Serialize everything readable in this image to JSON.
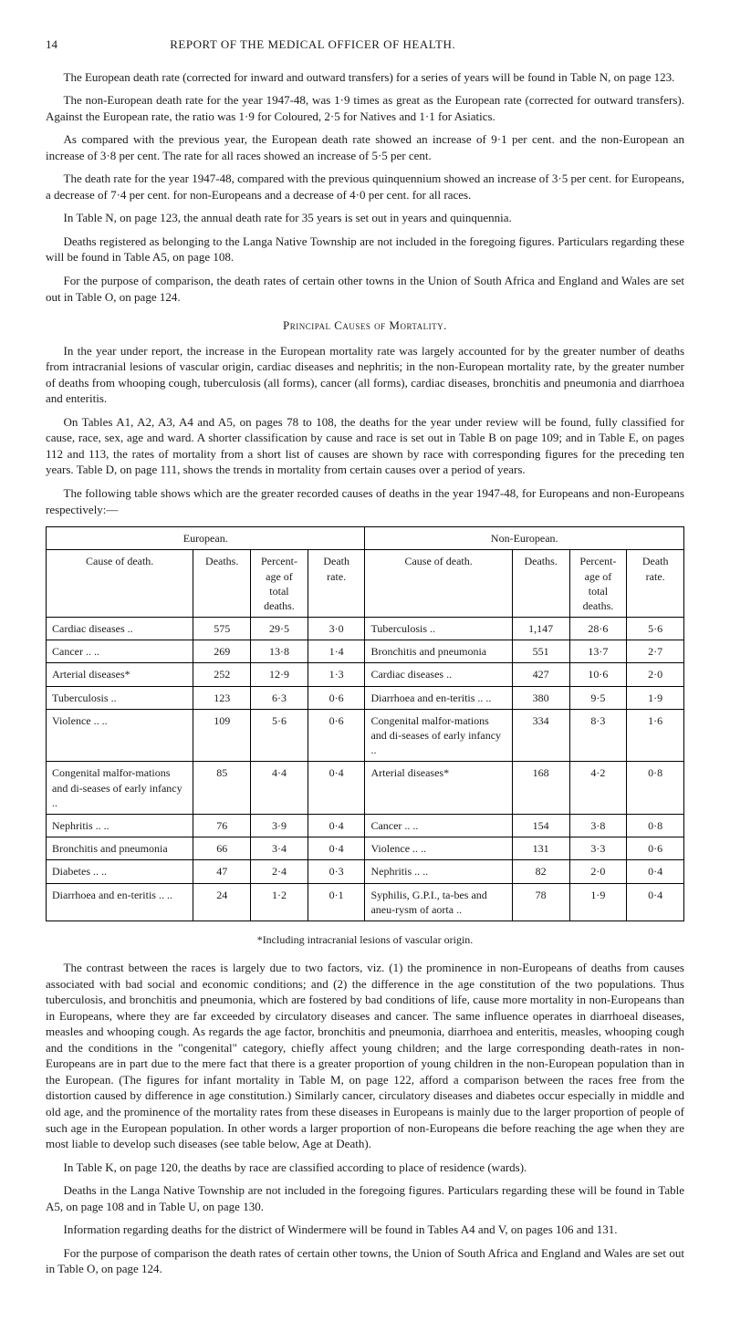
{
  "pageNumber": "14",
  "headerTitle": "REPORT OF THE MEDICAL OFFICER OF HEALTH.",
  "paragraphs": {
    "p1": "The European death rate (corrected for inward and outward transfers) for a series of years will be found in Table N, on page 123.",
    "p2": "The non-European death rate for the year 1947-48, was 1·9 times as great as the European rate (corrected for outward transfers). Against the European rate, the ratio was 1·9 for Coloured, 2·5 for Natives and 1·1 for Asiatics.",
    "p3": "As compared with the previous year, the European death rate showed an increase of 9·1 per cent. and the non-European an increase of 3·8 per cent. The rate for all races showed an increase of 5·5 per cent.",
    "p4": "The death rate for the year 1947-48, compared with the previous quinquennium showed an increase of 3·5 per cent. for Europeans, a decrease of 7·4 per cent. for non-Europeans and a decrease of 4·0 per cent. for all races.",
    "p5": "In Table N, on page 123, the annual death rate for 35 years is set out in years and quinquennia.",
    "p6": "Deaths registered as belonging to the Langa Native Township are not included in the foregoing figures. Particulars regarding these will be found in Table A5, on page 108.",
    "p7": "For the purpose of comparison, the death rates of certain other towns in the Union of South Africa and England and Wales are set out in Table O, on page 124.",
    "sectionTitle": "Principal Causes of Mortality.",
    "p8": "In the year under report, the increase in the European mortality rate was largely accounted for by the greater number of deaths from intracranial lesions of vascular origin, cardiac diseases and nephritis; in the non-European mortality rate, by the greater number of deaths from whooping cough, tuberculosis (all forms), cancer (all forms), cardiac diseases, bronchitis and pneumonia and diarrhoea and enteritis.",
    "p9": "On Tables A1, A2, A3, A4 and A5, on pages 78 to 108, the deaths for the year under review will be found, fully classified for cause, race, sex, age and ward. A shorter classification by cause and race is set out in Table B on page 109; and in Table E, on pages 112 and 113, the rates of mortality from a short list of causes are shown by race with corresponding figures for the preceding ten years. Table D, on page 111, shows the trends in mortality from certain causes over a period of years.",
    "p10": "The following table shows which are the greater recorded causes of deaths in the year 1947-48, for Europeans and non-Europeans respectively:—",
    "footnote": "*Including intracranial lesions of vascular origin.",
    "p11": "The contrast between the races is largely due to two factors, viz. (1) the prominence in non-Europeans of deaths from causes associated with bad social and economic conditions; and (2) the difference in the age constitution of the two populations. Thus tuberculosis, and bronchitis and pneumonia, which are fostered by bad conditions of life, cause more mortality in non-Europeans than in Europeans, where they are far exceeded by circulatory diseases and cancer. The same influence operates in diarrhoeal diseases, measles and whooping cough. As regards the age factor, bronchitis and pneumonia, diarrhoea and enteritis, measles, whooping cough and the conditions in the \"congenital\" category, chiefly affect young children; and the large corresponding death-rates in non-Europeans are in part due to the mere fact that there is a greater proportion of young children in the non-European population than in the European. (The figures for infant mortality in Table M, on page 122, afford a comparison between the races free from the distortion caused by difference in age constitution.) Similarly cancer, circulatory diseases and diabetes occur especially in middle and old age, and the prominence of the mortality rates from these diseases in Europeans is mainly due to the larger proportion of people of such age in the European population. In other words a larger proportion of non-Europeans die before reaching the age when they are most liable to develop such diseases (see table below, Age at Death).",
    "p12": "In Table K, on page 120, the deaths by race are classified according to place of residence (wards).",
    "p13": "Deaths in the Langa Native Township are not included in the foregoing figures. Particulars regarding these will be found in Table A5, on page 108 and in Table U, on page 130.",
    "p14": "Information regarding deaths for the district of Windermere will be found in Tables A4 and V, on pages 106 and 131.",
    "p15": "For the purpose of comparison the death rates of certain other towns, the Union of South Africa and England and Wales are set out in Table O, on page 124."
  },
  "table": {
    "groupHeaders": {
      "european": "European.",
      "nonEuropean": "Non-European."
    },
    "columnHeaders": {
      "cause": "Cause of death.",
      "deaths": "Deaths.",
      "percent": "Percent-age of total deaths.",
      "rate": "Death rate."
    },
    "european": [
      {
        "cause": "Cardiac diseases ..",
        "deaths": "575",
        "percent": "29·5",
        "rate": "3·0"
      },
      {
        "cause": "Cancer .. ..",
        "deaths": "269",
        "percent": "13·8",
        "rate": "1·4"
      },
      {
        "cause": "Arterial diseases*",
        "deaths": "252",
        "percent": "12·9",
        "rate": "1·3"
      },
      {
        "cause": "Tuberculosis ..",
        "deaths": "123",
        "percent": "6·3",
        "rate": "0·6"
      },
      {
        "cause": "Violence .. ..",
        "deaths": "109",
        "percent": "5·6",
        "rate": "0·6"
      },
      {
        "cause": "Congenital malfor-mations and di-seases of early infancy ..",
        "deaths": "85",
        "percent": "4·4",
        "rate": "0·4"
      },
      {
        "cause": "Nephritis .. ..",
        "deaths": "76",
        "percent": "3·9",
        "rate": "0·4"
      },
      {
        "cause": "Bronchitis and pneumonia",
        "deaths": "66",
        "percent": "3·4",
        "rate": "0·4"
      },
      {
        "cause": "Diabetes .. ..",
        "deaths": "47",
        "percent": "2·4",
        "rate": "0·3"
      },
      {
        "cause": "Diarrhoea and en-teritis .. ..",
        "deaths": "24",
        "percent": "1·2",
        "rate": "0·1"
      }
    ],
    "nonEuropean": [
      {
        "cause": "Tuberculosis ..",
        "deaths": "1,147",
        "percent": "28·6",
        "rate": "5·6"
      },
      {
        "cause": "Bronchitis and pneumonia",
        "deaths": "551",
        "percent": "13·7",
        "rate": "2·7"
      },
      {
        "cause": "Cardiac diseases ..",
        "deaths": "427",
        "percent": "10·6",
        "rate": "2·0"
      },
      {
        "cause": "Diarrhoea and en-teritis .. ..",
        "deaths": "380",
        "percent": "9·5",
        "rate": "1·9"
      },
      {
        "cause": "Congenital malfor-mations and di-seases of early infancy ..",
        "deaths": "334",
        "percent": "8·3",
        "rate": "1·6"
      },
      {
        "cause": "Arterial diseases*",
        "deaths": "168",
        "percent": "4·2",
        "rate": "0·8"
      },
      {
        "cause": "Cancer .. ..",
        "deaths": "154",
        "percent": "3·8",
        "rate": "0·8"
      },
      {
        "cause": "Violence .. ..",
        "deaths": "131",
        "percent": "3·3",
        "rate": "0·6"
      },
      {
        "cause": "Nephritis .. ..",
        "deaths": "82",
        "percent": "2·0",
        "rate": "0·4"
      },
      {
        "cause": "Syphilis, G.P.I., ta-bes and aneu-rysm of aorta ..",
        "deaths": "78",
        "percent": "1·9",
        "rate": "0·4"
      }
    ]
  }
}
